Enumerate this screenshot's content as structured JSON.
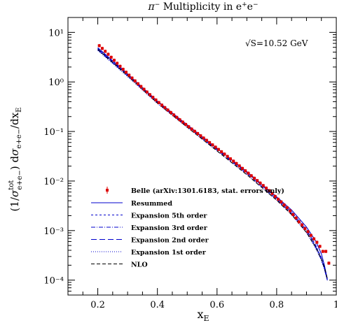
{
  "chart_data": {
    "type": "line",
    "title": "π⁻ Multiplicity in e⁺e⁻",
    "xlabel": "x_E",
    "ylabel": "(1/σ_tot e+e−) dσ_e+e−/dx_E",
    "xlim": [
      0.1,
      1.0
    ],
    "ylim": [
      5e-05,
      20
    ],
    "yscale": "log",
    "annotation": "√S=10.52 GeV",
    "x_ticks": [
      "0.2",
      "0.4",
      "0.6",
      "0.8",
      "1"
    ],
    "x_tick_values": [
      0.2,
      0.4,
      0.6,
      0.8,
      1.0
    ],
    "y_ticks": [
      "10⁻⁴",
      "10⁻³",
      "10⁻²",
      "10⁻¹",
      "10⁰",
      "10¹"
    ],
    "y_tick_exponents": [
      -4,
      -3,
      -2,
      -1,
      0,
      1
    ],
    "legend_position": "lower-left",
    "data_points": {
      "name": "Belle (arXiv:1301.6183, stat. errors only)",
      "color": "#dd0000",
      "x": [
        0.205,
        0.215,
        0.225,
        0.235,
        0.245,
        0.255,
        0.265,
        0.275,
        0.285,
        0.295,
        0.305,
        0.315,
        0.325,
        0.335,
        0.345,
        0.355,
        0.365,
        0.375,
        0.385,
        0.395,
        0.405,
        0.415,
        0.425,
        0.435,
        0.445,
        0.455,
        0.465,
        0.475,
        0.485,
        0.495,
        0.505,
        0.515,
        0.525,
        0.535,
        0.545,
        0.555,
        0.565,
        0.575,
        0.585,
        0.595,
        0.605,
        0.615,
        0.625,
        0.635,
        0.645,
        0.655,
        0.665,
        0.675,
        0.685,
        0.695,
        0.705,
        0.715,
        0.725,
        0.735,
        0.745,
        0.755,
        0.765,
        0.775,
        0.785,
        0.795,
        0.805,
        0.815,
        0.825,
        0.835,
        0.845,
        0.855,
        0.865,
        0.875,
        0.885,
        0.895,
        0.905,
        0.915,
        0.925,
        0.935,
        0.945,
        0.955,
        0.965,
        0.975
      ],
      "y": [
        5.4,
        4.75,
        4.15,
        3.62,
        3.15,
        2.74,
        2.38,
        2.07,
        1.8,
        1.57,
        1.37,
        1.2,
        1.05,
        0.92,
        0.81,
        0.712,
        0.627,
        0.553,
        0.489,
        0.433,
        0.384,
        0.341,
        0.304,
        0.271,
        0.242,
        0.216,
        0.193,
        0.173,
        0.155,
        0.139,
        0.125,
        0.112,
        0.101,
        0.091,
        0.082,
        0.0738,
        0.0664,
        0.0597,
        0.0537,
        0.0483,
        0.0434,
        0.039,
        0.035,
        0.0314,
        0.0281,
        0.0252,
        0.0226,
        0.0202,
        0.018,
        0.0161,
        0.0144,
        0.0128,
        0.0114,
        0.0102,
        0.0091,
        0.0081,
        0.0072,
        0.0064,
        0.0056,
        0.0049,
        0.0043,
        0.0038,
        0.0033,
        0.0029,
        0.0025,
        0.0021,
        0.0018,
        0.0015,
        0.0013,
        0.0011,
        0.00095,
        0.0008,
        0.00068,
        0.00058,
        0.00048,
        0.00038,
        0.00038,
        0.00022
      ]
    },
    "series": [
      {
        "name": "Resummed",
        "color": "#0000cc",
        "dash": "solid",
        "x": [
          0.2,
          0.3,
          0.4,
          0.5,
          0.6,
          0.7,
          0.8,
          0.85,
          0.9,
          0.93,
          0.95,
          0.96,
          0.97
        ],
        "y": [
          4.9,
          1.45,
          0.41,
          0.136,
          0.046,
          0.0155,
          0.0048,
          0.0026,
          0.00118,
          0.00063,
          0.00034,
          0.0002,
          0.000105
        ]
      },
      {
        "name": "Expansion 5th order",
        "color": "#0000cc",
        "dash": "3,3",
        "x": [
          0.2,
          0.3,
          0.4,
          0.5,
          0.6,
          0.7,
          0.8,
          0.85,
          0.9,
          0.93,
          0.95,
          0.96,
          0.97
        ],
        "y": [
          4.75,
          1.42,
          0.405,
          0.134,
          0.0453,
          0.0152,
          0.0046,
          0.0024,
          0.00105,
          0.00052,
          0.00028,
          0.00018,
          0.0001
        ]
      },
      {
        "name": "Expansion 3rd order",
        "color": "#0000cc",
        "dash": "6,2,1,2",
        "x": [
          0.2,
          0.3,
          0.4,
          0.5,
          0.6,
          0.7,
          0.8,
          0.85,
          0.9,
          0.93,
          0.95,
          0.96,
          0.97
        ],
        "y": [
          4.6,
          1.38,
          0.395,
          0.131,
          0.0443,
          0.0149,
          0.00455,
          0.00238,
          0.00103,
          0.00051,
          0.00027,
          0.000175,
          0.0001
        ]
      },
      {
        "name": "Expansion 2nd order",
        "color": "#0000cc",
        "dash": "8,4",
        "x": [
          0.2,
          0.3,
          0.4,
          0.5,
          0.6,
          0.7,
          0.8,
          0.85,
          0.9,
          0.93,
          0.95,
          0.96,
          0.97
        ],
        "y": [
          4.45,
          1.33,
          0.38,
          0.126,
          0.0425,
          0.0142,
          0.0043,
          0.0022,
          0.00095,
          0.00047,
          0.00026,
          0.00017,
          0.0001
        ]
      },
      {
        "name": "Expansion 1st order",
        "color": "#0000cc",
        "dash": "1,2",
        "x": [
          0.2,
          0.3,
          0.4,
          0.5,
          0.6,
          0.7,
          0.8,
          0.85,
          0.9,
          0.93,
          0.95,
          0.96,
          0.97
        ],
        "y": [
          4.3,
          1.28,
          0.365,
          0.121,
          0.0405,
          0.0135,
          0.0041,
          0.0021,
          0.0009,
          0.00045,
          0.00025,
          0.000165,
          0.0001
        ]
      },
      {
        "name": "NLO",
        "color": "#000000",
        "dash": "5,3",
        "x": [
          0.2,
          0.3,
          0.4,
          0.5,
          0.6,
          0.7,
          0.8,
          0.85,
          0.9,
          0.93,
          0.95,
          0.96,
          0.97
        ],
        "y": [
          4.55,
          1.34,
          0.375,
          0.122,
          0.0405,
          0.0134,
          0.0041,
          0.0021,
          0.00092,
          0.00047,
          0.00027,
          0.00018,
          0.000108
        ]
      }
    ]
  }
}
